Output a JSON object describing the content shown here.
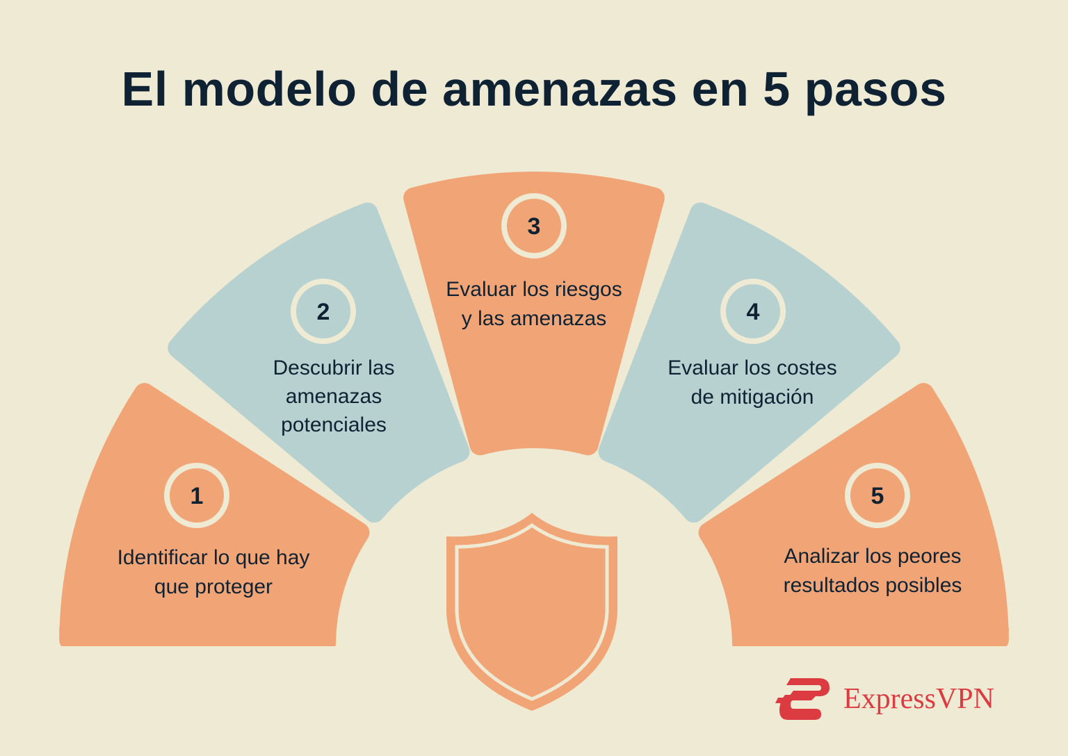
{
  "title": "El modelo de amenazas en 5 pasos",
  "colors": {
    "background": "#efead3",
    "orange": "#f1a577",
    "blue": "#b7d1d0",
    "text": "#0f2233",
    "brand": "#dc3b41"
  },
  "steps": [
    {
      "number": "1",
      "lines": [
        "Identificar lo que hay",
        "que proteger"
      ],
      "color": "orange"
    },
    {
      "number": "2",
      "lines": [
        "Descubrir las",
        "amenazas",
        "potenciales"
      ],
      "color": "blue"
    },
    {
      "number": "3",
      "lines": [
        "Evaluar los riesgos",
        "y las amenazas"
      ],
      "color": "orange"
    },
    {
      "number": "4",
      "lines": [
        "Evaluar los costes",
        "de mitigación"
      ],
      "color": "blue"
    },
    {
      "number": "5",
      "lines": [
        "Analizar los peores",
        "resultados posibles"
      ],
      "color": "orange"
    }
  ],
  "center_icon": "shield-icon",
  "logo": {
    "text": "ExpressVPN",
    "icon": "expressvpn-logo-icon"
  }
}
